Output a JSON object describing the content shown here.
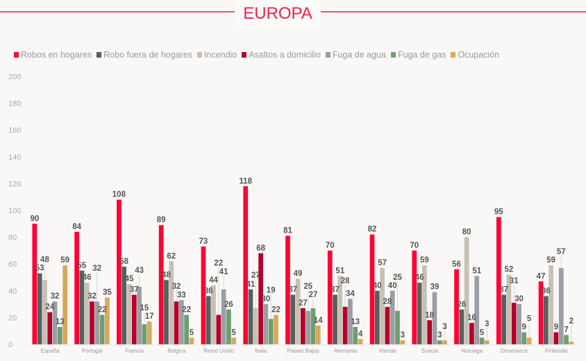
{
  "chart_data": {
    "type": "bar",
    "title": "EUROPA",
    "categories": [
      "España",
      "Portugal",
      "Francia",
      "Belgica",
      "Reino Unido",
      "Italia",
      "Paises Bajos",
      "Alemania",
      "Irlanda",
      "Suecia",
      "Noruega",
      "Dinamarca",
      "Finlandia"
    ],
    "series": [
      {
        "name": "Robos en hogares",
        "color": "#ff0033",
        "values": [
          90,
          84,
          108,
          89,
          73,
          118,
          81,
          70,
          82,
          70,
          56,
          95,
          47
        ]
      },
      {
        "name": "Robo fuera de hogares",
        "color": "#56605f",
        "values": [
          53,
          55,
          58,
          48,
          36,
          41,
          37,
          37,
          40,
          46,
          26,
          37,
          36
        ]
      },
      {
        "name": "Incendio",
        "color": "#c8c0b5",
        "values": [
          48,
          46,
          45,
          62,
          44,
          27,
          49,
          51,
          57,
          59,
          80,
          52,
          59
        ]
      },
      {
        "name": "Asaltos a domicilio",
        "color": "#b5002a",
        "values": [
          24,
          32,
          37,
          32,
          22,
          68,
          27,
          28,
          28,
          18,
          16,
          31,
          9
        ]
      },
      {
        "name": "Fuga de agua",
        "color": "#9a9ea5",
        "values": [
          32,
          32,
          43,
          33,
          41,
          30,
          25,
          34,
          40,
          39,
          51,
          30,
          57
        ]
      },
      {
        "name": "Fuga de gas",
        "color": "#6e9e70",
        "values": [
          13,
          22,
          15,
          22,
          26,
          19,
          27,
          13,
          25,
          3,
          5,
          9,
          7
        ]
      },
      {
        "name": "Ocupación",
        "color": "#d9a85a",
        "values": [
          59,
          35,
          17,
          5,
          5,
          22,
          14,
          4,
          3,
          3,
          3,
          5,
          2
        ]
      }
    ],
    "yticks": [
      "0",
      "20",
      "40",
      "60",
      "80",
      "100",
      "120",
      "140",
      "160",
      "180",
      "200"
    ],
    "ylim": [
      0,
      200
    ],
    "grid": false,
    "legend": "top"
  }
}
